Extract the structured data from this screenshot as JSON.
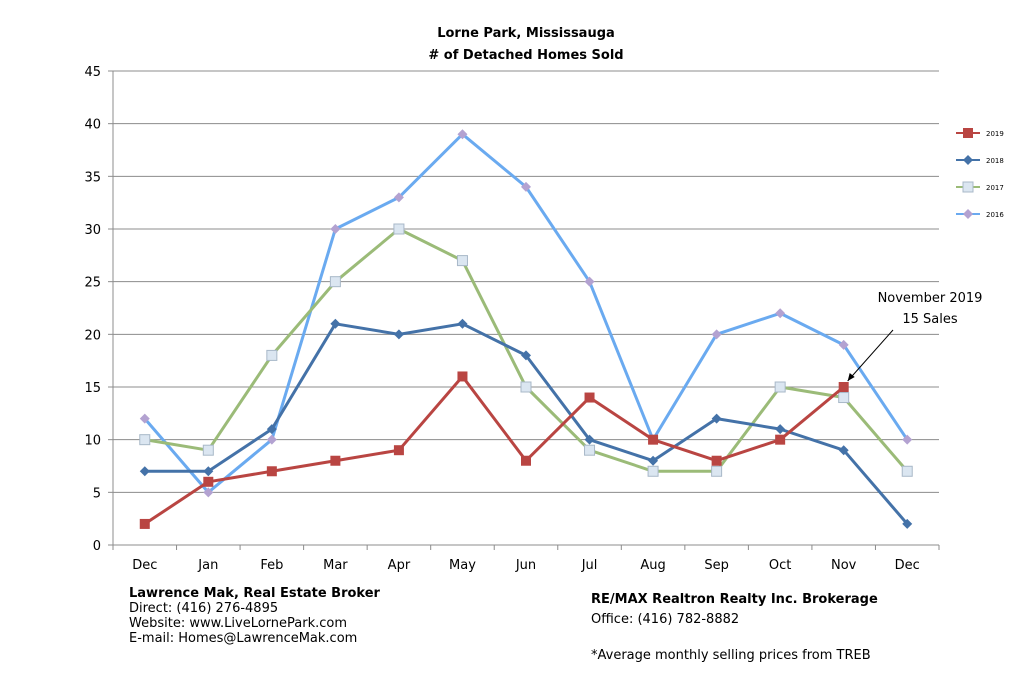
{
  "chart_data": {
    "type": "line",
    "title": "Lorne Park, Mississauga",
    "subtitle": "# of Detached Homes Sold",
    "categories": [
      "Dec",
      "Jan",
      "Feb",
      "Mar",
      "Apr",
      "May",
      "Jun",
      "Jul",
      "Aug",
      "Sep",
      "Oct",
      "Nov",
      "Dec"
    ],
    "ylim": [
      0,
      45
    ],
    "yticks": [
      0,
      5,
      10,
      15,
      20,
      25,
      30,
      35,
      40,
      45
    ],
    "grid": true,
    "legend_position": "right",
    "series": [
      {
        "name": "2019",
        "color": "#b94542",
        "marker": "square",
        "values": [
          2,
          6,
          7,
          8,
          9,
          16,
          8,
          14,
          10,
          8,
          10,
          15,
          null
        ]
      },
      {
        "name": "2018",
        "color": "#4472a8",
        "marker": "diamond",
        "values": [
          7,
          7,
          11,
          21,
          20,
          21,
          18,
          10,
          8,
          12,
          11,
          9,
          2
        ]
      },
      {
        "name": "2017",
        "color": "#9bbb78",
        "marker": "square-open",
        "values": [
          10,
          9,
          18,
          25,
          30,
          27,
          15,
          9,
          7,
          7,
          15,
          14,
          7
        ]
      },
      {
        "name": "2016",
        "color": "#6aaaf0",
        "marker": "diamond-light",
        "values": [
          12,
          5,
          10,
          30,
          33,
          39,
          34,
          25,
          10,
          20,
          22,
          19,
          10
        ]
      }
    ],
    "annotation": {
      "line1": "November 2019",
      "line2": "15 Sales",
      "point_category_index": 11,
      "point_value": 15
    }
  },
  "footer": {
    "broker_name": "Lawrence Mak, Real Estate Broker",
    "direct": "Direct:  (416) 276-4895",
    "website": "Website:  www.LiveLornePark.com",
    "email": "E-mail:  Homes@LawrenceMak.com",
    "brokerage": "RE/MAX Realtron Realty Inc. Brokerage",
    "office": "Office: (416) 782-8882",
    "footnote": "*Average monthly selling prices from TREB"
  }
}
